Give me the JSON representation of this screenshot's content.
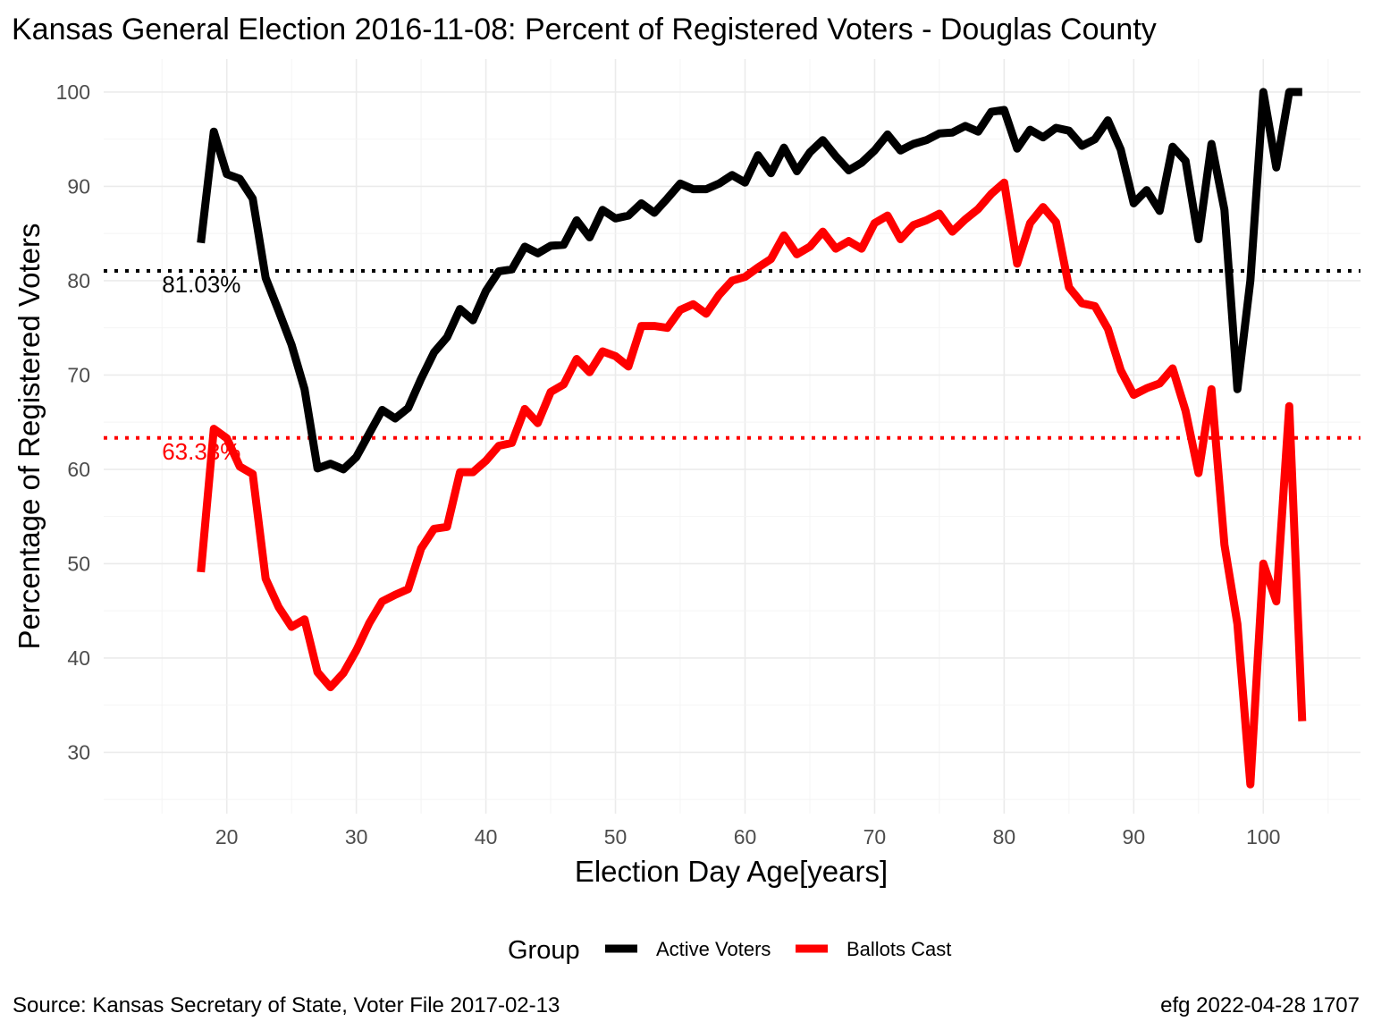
{
  "chart_data": {
    "type": "line",
    "title": "Kansas General Election 2016-11-08:  Percent of Registered Voters - Douglas County",
    "xlabel": "Election Day Age[years]",
    "ylabel": "Percentage of Registered Voters",
    "xlim": [
      10.5,
      107.5
    ],
    "ylim": [
      23.5,
      103.5
    ],
    "x_ticks": [
      20,
      30,
      40,
      50,
      60,
      70,
      80,
      90,
      100
    ],
    "y_ticks": [
      30,
      40,
      50,
      60,
      70,
      80,
      90,
      100
    ],
    "grid": true,
    "legend": {
      "title": "Group",
      "position": "bottom",
      "entries": [
        "Active Voters",
        "Ballots Cast"
      ]
    },
    "x": [
      18,
      19,
      20,
      21,
      22,
      23,
      24,
      25,
      26,
      27,
      28,
      29,
      30,
      31,
      32,
      33,
      34,
      35,
      36,
      37,
      38,
      39,
      40,
      41,
      42,
      43,
      44,
      45,
      46,
      47,
      48,
      49,
      50,
      51,
      52,
      53,
      54,
      55,
      56,
      57,
      58,
      59,
      60,
      61,
      62,
      63,
      64,
      65,
      66,
      67,
      68,
      69,
      70,
      71,
      72,
      73,
      74,
      75,
      76,
      77,
      78,
      79,
      80,
      81,
      82,
      83,
      84,
      85,
      86,
      87,
      88,
      89,
      90,
      91,
      92,
      93,
      94,
      95,
      96,
      97,
      98,
      99,
      100,
      101,
      102,
      103
    ],
    "series": [
      {
        "name": "Active Voters",
        "color": "#000000",
        "values": [
          84,
          95.8,
          91.3,
          90.8,
          88.7,
          80.3,
          76.8,
          73.2,
          68.5,
          60.1,
          60.6,
          60.0,
          61.3,
          63.8,
          66.3,
          65.4,
          66.5,
          69.6,
          72.4,
          74.0,
          77.0,
          75.8,
          78.9,
          81.0,
          81.2,
          83.6,
          82.9,
          83.7,
          83.8,
          86.4,
          84.6,
          87.5,
          86.6,
          86.9,
          88.2,
          87.2,
          88.7,
          90.3,
          89.7,
          89.7,
          90.3,
          91.2,
          90.4,
          93.3,
          91.4,
          94.1,
          91.6,
          93.6,
          94.9,
          93.2,
          91.7,
          92.5,
          93.8,
          95.5,
          93.8,
          94.5,
          94.9,
          95.6,
          95.7,
          96.4,
          95.8,
          97.9,
          98.1,
          94.0,
          96.0,
          95.2,
          96.2,
          95.9,
          94.3,
          95.0,
          97.0,
          93.9,
          88.2,
          89.6,
          87.4,
          94.2,
          92.7,
          84.4,
          94.5,
          87.5,
          68.5,
          80.0,
          100,
          92.0,
          100,
          100
        ]
      },
      {
        "name": "Ballots Cast",
        "color": "#ff0000",
        "values": [
          49.1,
          64.3,
          63.3,
          60.3,
          59.5,
          48.4,
          45.4,
          43.3,
          44.1,
          38.5,
          36.9,
          38.4,
          40.8,
          43.7,
          46.0,
          46.7,
          47.3,
          51.6,
          53.7,
          53.9,
          59.7,
          59.7,
          60.9,
          62.5,
          62.8,
          66.4,
          64.9,
          68.2,
          69.0,
          71.7,
          70.3,
          72.5,
          72.0,
          70.9,
          75.2,
          75.2,
          75.0,
          76.9,
          77.5,
          76.5,
          78.5,
          80.0,
          80.4,
          81.4,
          82.3,
          84.8,
          82.8,
          83.6,
          85.2,
          83.4,
          84.2,
          83.4,
          86.1,
          86.9,
          84.4,
          85.9,
          86.4,
          87.1,
          85.2,
          86.5,
          87.6,
          89.2,
          90.4,
          81.8,
          86.1,
          87.8,
          86.2,
          79.3,
          77.6,
          77.3,
          74.9,
          70.5,
          67.9,
          68.6,
          69.1,
          70.7,
          66.2,
          59.6,
          68.5,
          52.0,
          43.6,
          26.6,
          50.0,
          46.0,
          66.7,
          33.3
        ]
      }
    ],
    "reference_lines": [
      {
        "y": 81.03,
        "label": "81.03%",
        "color": "#000000",
        "style": "dotted"
      },
      {
        "y": 63.33,
        "label": "63.33%",
        "color": "#ff0000",
        "style": "dotted"
      }
    ]
  },
  "caption": {
    "left": "Source:  Kansas Secretary of State, Voter File  2017-02-13",
    "right": "efg 2022-04-28 1707"
  }
}
